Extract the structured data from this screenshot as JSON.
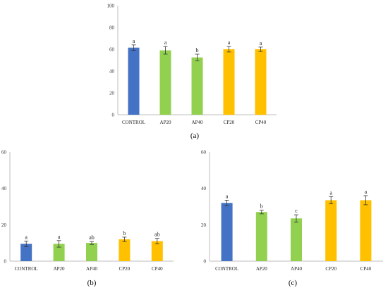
{
  "chart_data": [
    {
      "type": "bar",
      "panel_label": "(a)",
      "categories": [
        "CONTROL",
        "AP20",
        "AP40",
        "CP20",
        "CP40"
      ],
      "values": [
        61.5,
        59,
        52.5,
        60,
        60
      ],
      "errors": [
        2.5,
        3.5,
        3,
        2.5,
        2
      ],
      "significance": [
        "a",
        "a",
        "b",
        "a",
        "a"
      ],
      "bar_colors": [
        "#4472C4",
        "#92D050",
        "#92D050",
        "#FFC000",
        "#FFC000"
      ],
      "ylim": [
        0,
        100
      ],
      "yticks": [
        0,
        20,
        40,
        60,
        80,
        100
      ],
      "grid": false,
      "title": "",
      "xlabel": "",
      "ylabel": ""
    },
    {
      "type": "bar",
      "panel_label": "(b)",
      "categories": [
        "CONTROL",
        "AP20",
        "AP40",
        "CP20",
        "CP40"
      ],
      "values": [
        9.5,
        9.5,
        10,
        12,
        11
      ],
      "errors": [
        1.5,
        1.8,
        0.8,
        1.2,
        1.5
      ],
      "significance": [
        "a",
        "a",
        "ab",
        "b",
        "ab"
      ],
      "bar_colors": [
        "#4472C4",
        "#92D050",
        "#92D050",
        "#FFC000",
        "#FFC000"
      ],
      "ylim": [
        0,
        60
      ],
      "yticks": [
        0,
        20,
        40,
        60
      ],
      "grid": false,
      "title": "",
      "xlabel": "",
      "ylabel": ""
    },
    {
      "type": "bar",
      "panel_label": "(c)",
      "categories": [
        "CONTROL",
        "AP20",
        "AP40",
        "CP20",
        "CP40"
      ],
      "values": [
        32,
        27,
        23.5,
        33.5,
        33.5
      ],
      "errors": [
        1.5,
        1,
        2,
        2,
        2.5
      ],
      "significance": [
        "a",
        "b",
        "c",
        "a",
        "a"
      ],
      "bar_colors": [
        "#4472C4",
        "#92D050",
        "#92D050",
        "#FFC000",
        "#FFC000"
      ],
      "ylim": [
        0,
        60
      ],
      "yticks": [
        0,
        20,
        40,
        60
      ],
      "grid": false,
      "title": "",
      "xlabel": "",
      "ylabel": ""
    }
  ]
}
